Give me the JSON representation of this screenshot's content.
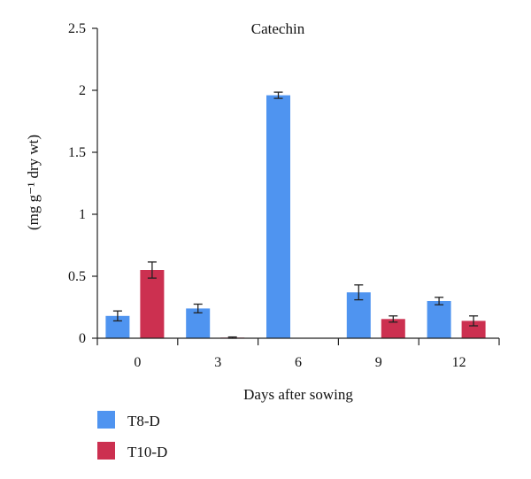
{
  "chart_data": {
    "type": "bar",
    "title": "Catechin",
    "xlabel": "Days after sowing",
    "ylabel": "(mg g⁻¹ dry wt)",
    "categories": [
      "0",
      "3",
      "6",
      "9",
      "12"
    ],
    "ylim": [
      0,
      2.5
    ],
    "yticks": [
      "0",
      "0.5",
      "1",
      "1.5",
      "2",
      "2.5"
    ],
    "grid": false,
    "legend_position": "bottom-left",
    "series": [
      {
        "name": "T8-D",
        "color": "#4f94f0",
        "values": [
          0.18,
          0.24,
          1.96,
          0.37,
          0.3
        ],
        "errors": [
          0.04,
          0.035,
          0.025,
          0.06,
          0.03
        ]
      },
      {
        "name": "T10-D",
        "color": "#cc3050",
        "values": [
          0.55,
          0.005,
          0,
          0.155,
          0.14
        ],
        "errors": [
          0.065,
          0.005,
          0,
          0.025,
          0.04
        ]
      }
    ]
  }
}
